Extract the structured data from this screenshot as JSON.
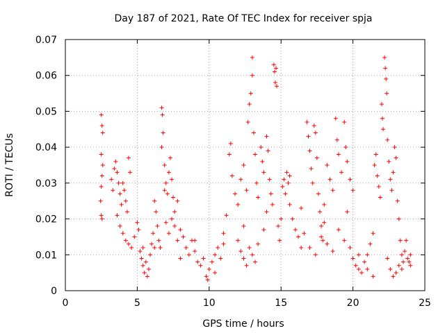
{
  "chart_data": {
    "type": "scatter",
    "title": "Day 187 of 2021, Rate Of TEC Index for receiver spja",
    "xlabel": "GPS time / hours",
    "ylabel": "ROTI / TECUs",
    "xlim": [
      0,
      25
    ],
    "ylim": [
      0,
      0.07
    ],
    "xticks": [
      0,
      5,
      10,
      15,
      20,
      25
    ],
    "xtick_labels": [
      "0",
      "5",
      "10",
      "15",
      "20",
      "25"
    ],
    "yticks": [
      0,
      0.01,
      0.02,
      0.03,
      0.04,
      0.05,
      0.06,
      0.07
    ],
    "ytick_labels": [
      "0",
      "0.01",
      "0.02",
      "0.03",
      "0.04",
      "0.05",
      "0.06",
      "0.07"
    ],
    "grid": true,
    "marker": "+",
    "color": "#ff0000",
    "series": [
      {
        "name": "ROTI",
        "points": [
          [
            2.5,
            0.049
          ],
          [
            2.55,
            0.046
          ],
          [
            2.6,
            0.044
          ],
          [
            2.5,
            0.038
          ],
          [
            2.6,
            0.035
          ],
          [
            2.55,
            0.032
          ],
          [
            2.5,
            0.029
          ],
          [
            2.45,
            0.025
          ],
          [
            2.5,
            0.021
          ],
          [
            2.55,
            0.02
          ],
          [
            3.2,
            0.031
          ],
          [
            3.3,
            0.028
          ],
          [
            3.4,
            0.034
          ],
          [
            3.5,
            0.036
          ],
          [
            3.6,
            0.033
          ],
          [
            3.7,
            0.03
          ],
          [
            3.8,
            0.027
          ],
          [
            3.9,
            0.024
          ],
          [
            4.0,
            0.03
          ],
          [
            4.1,
            0.028
          ],
          [
            4.2,
            0.025
          ],
          [
            4.3,
            0.022
          ],
          [
            4.4,
            0.037
          ],
          [
            4.5,
            0.033
          ],
          [
            3.6,
            0.021
          ],
          [
            3.8,
            0.018
          ],
          [
            4.0,
            0.016
          ],
          [
            4.2,
            0.014
          ],
          [
            4.4,
            0.013
          ],
          [
            4.6,
            0.012
          ],
          [
            4.8,
            0.015
          ],
          [
            5.0,
            0.019
          ],
          [
            5.1,
            0.017
          ],
          [
            5.2,
            0.011
          ],
          [
            5.3,
            0.009
          ],
          [
            5.4,
            0.007
          ],
          [
            5.5,
            0.005
          ],
          [
            5.6,
            0.008
          ],
          [
            5.7,
            0.004
          ],
          [
            5.8,
            0.006
          ],
          [
            5.9,
            0.01
          ],
          [
            6.0,
            0.013
          ],
          [
            6.1,
            0.016
          ],
          [
            6.2,
            0.025
          ],
          [
            6.3,
            0.022
          ],
          [
            6.4,
            0.018
          ],
          [
            6.5,
            0.014
          ],
          [
            6.6,
            0.012
          ],
          [
            6.7,
            0.051
          ],
          [
            6.75,
            0.049
          ],
          [
            6.8,
            0.044
          ],
          [
            6.7,
            0.04
          ],
          [
            6.9,
            0.035
          ],
          [
            7.0,
            0.03
          ],
          [
            7.1,
            0.027
          ],
          [
            7.2,
            0.033
          ],
          [
            7.3,
            0.037
          ],
          [
            7.4,
            0.031
          ],
          [
            7.5,
            0.026
          ],
          [
            7.6,
            0.022
          ],
          [
            7.0,
            0.019
          ],
          [
            7.2,
            0.016
          ],
          [
            7.4,
            0.02
          ],
          [
            7.6,
            0.018
          ],
          [
            7.8,
            0.014
          ],
          [
            8.0,
            0.017
          ],
          [
            8.2,
            0.015
          ],
          [
            8.4,
            0.012
          ],
          [
            8.6,
            0.01
          ],
          [
            8.8,
            0.014
          ],
          [
            9.0,
            0.011
          ],
          [
            9.2,
            0.008
          ],
          [
            9.4,
            0.007
          ],
          [
            9.6,
            0.009
          ],
          [
            9.8,
            0.004
          ],
          [
            9.9,
            0.003
          ],
          [
            10.0,
            0.006
          ],
          [
            10.2,
            0.008
          ],
          [
            10.4,
            0.01
          ],
          [
            10.6,
            0.012
          ],
          [
            10.8,
            0.009
          ],
          [
            11.0,
            0.016
          ],
          [
            11.2,
            0.021
          ],
          [
            11.4,
            0.038
          ],
          [
            11.5,
            0.041
          ],
          [
            11.6,
            0.032
          ],
          [
            11.8,
            0.027
          ],
          [
            12.0,
            0.024
          ],
          [
            12.2,
            0.031
          ],
          [
            12.4,
            0.035
          ],
          [
            12.6,
            0.028
          ],
          [
            12.7,
            0.047
          ],
          [
            12.8,
            0.052
          ],
          [
            12.9,
            0.055
          ],
          [
            13.0,
            0.065
          ],
          [
            13.0,
            0.06
          ],
          [
            13.1,
            0.044
          ],
          [
            13.2,
            0.038
          ],
          [
            13.3,
            0.03
          ],
          [
            13.4,
            0.026
          ],
          [
            12.0,
            0.014
          ],
          [
            12.2,
            0.011
          ],
          [
            12.4,
            0.009
          ],
          [
            12.6,
            0.007
          ],
          [
            12.8,
            0.012
          ],
          [
            13.0,
            0.01
          ],
          [
            13.2,
            0.008
          ],
          [
            13.4,
            0.013
          ],
          [
            13.6,
            0.04
          ],
          [
            13.7,
            0.036
          ],
          [
            13.8,
            0.033
          ],
          [
            14.0,
            0.043
          ],
          [
            14.1,
            0.039
          ],
          [
            14.2,
            0.031
          ],
          [
            14.3,
            0.027
          ],
          [
            14.4,
            0.024
          ],
          [
            14.5,
            0.063
          ],
          [
            14.55,
            0.061
          ],
          [
            14.6,
            0.058
          ],
          [
            14.65,
            0.062
          ],
          [
            14.7,
            0.057
          ],
          [
            14.8,
            0.018
          ],
          [
            14.9,
            0.014
          ],
          [
            15.0,
            0.02
          ],
          [
            15.1,
            0.029
          ],
          [
            15.2,
            0.031
          ],
          [
            15.3,
            0.027
          ],
          [
            15.4,
            0.033
          ],
          [
            15.5,
            0.03
          ],
          [
            15.6,
            0.024
          ],
          [
            15.8,
            0.02
          ],
          [
            16.0,
            0.017
          ],
          [
            16.2,
            0.015
          ],
          [
            16.4,
            0.012
          ],
          [
            16.6,
            0.016
          ],
          [
            16.8,
            0.047
          ],
          [
            16.9,
            0.043
          ],
          [
            17.0,
            0.039
          ],
          [
            17.1,
            0.034
          ],
          [
            17.2,
            0.03
          ],
          [
            17.3,
            0.046
          ],
          [
            17.4,
            0.044
          ],
          [
            17.5,
            0.037
          ],
          [
            17.6,
            0.027
          ],
          [
            17.7,
            0.022
          ],
          [
            17.8,
            0.018
          ],
          [
            17.9,
            0.014
          ],
          [
            18.0,
            0.024
          ],
          [
            18.2,
            0.035
          ],
          [
            18.4,
            0.031
          ],
          [
            18.6,
            0.028
          ],
          [
            18.8,
            0.048
          ],
          [
            18.9,
            0.042
          ],
          [
            19.0,
            0.038
          ],
          [
            19.2,
            0.033
          ],
          [
            19.4,
            0.047
          ],
          [
            19.5,
            0.04
          ],
          [
            19.6,
            0.036
          ],
          [
            19.8,
            0.031
          ],
          [
            20.0,
            0.028
          ],
          [
            17.0,
            0.012
          ],
          [
            17.4,
            0.01
          ],
          [
            17.8,
            0.015
          ],
          [
            18.2,
            0.013
          ],
          [
            18.6,
            0.011
          ],
          [
            19.0,
            0.017
          ],
          [
            19.4,
            0.014
          ],
          [
            19.8,
            0.012
          ],
          [
            20.0,
            0.009
          ],
          [
            20.2,
            0.007
          ],
          [
            20.4,
            0.006
          ],
          [
            20.6,
            0.005
          ],
          [
            20.8,
            0.008
          ],
          [
            21.0,
            0.01
          ],
          [
            21.2,
            0.013
          ],
          [
            21.4,
            0.016
          ],
          [
            21.5,
            0.035
          ],
          [
            21.6,
            0.038
          ],
          [
            21.7,
            0.032
          ],
          [
            21.8,
            0.029
          ],
          [
            21.9,
            0.026
          ],
          [
            22.0,
            0.052
          ],
          [
            22.05,
            0.048
          ],
          [
            22.1,
            0.045
          ],
          [
            22.2,
            0.065
          ],
          [
            22.25,
            0.062
          ],
          [
            22.3,
            0.059
          ],
          [
            22.35,
            0.055
          ],
          [
            22.4,
            0.042
          ],
          [
            22.5,
            0.036
          ],
          [
            22.6,
            0.031
          ],
          [
            22.7,
            0.028
          ],
          [
            22.8,
            0.033
          ],
          [
            22.9,
            0.04
          ],
          [
            23.0,
            0.037
          ],
          [
            23.1,
            0.025
          ],
          [
            23.2,
            0.02
          ],
          [
            23.3,
            0.014
          ],
          [
            23.4,
            0.01
          ],
          [
            23.5,
            0.008
          ],
          [
            22.4,
            0.009
          ],
          [
            22.6,
            0.006
          ],
          [
            22.8,
            0.004
          ],
          [
            23.0,
            0.005
          ],
          [
            23.2,
            0.007
          ],
          [
            23.4,
            0.006
          ],
          [
            23.6,
            0.011
          ],
          [
            23.7,
            0.014
          ],
          [
            23.8,
            0.009
          ],
          [
            23.9,
            0.008
          ],
          [
            24.0,
            0.01
          ],
          [
            24.0,
            0.007
          ],
          [
            21.0,
            0.006
          ],
          [
            21.4,
            0.004
          ],
          [
            20.4,
            0.01
          ],
          [
            19.6,
            0.022
          ],
          [
            18.0,
            0.019
          ],
          [
            16.4,
            0.023
          ],
          [
            15.6,
            0.032
          ],
          [
            14.0,
            0.022
          ],
          [
            13.8,
            0.017
          ],
          [
            12.4,
            0.018
          ],
          [
            11.0,
            0.013
          ],
          [
            10.4,
            0.005
          ],
          [
            9.0,
            0.014
          ],
          [
            8.0,
            0.009
          ],
          [
            7.8,
            0.025
          ],
          [
            6.9,
            0.028
          ],
          [
            6.2,
            0.012
          ],
          [
            5.4,
            0.012
          ]
        ]
      }
    ]
  }
}
